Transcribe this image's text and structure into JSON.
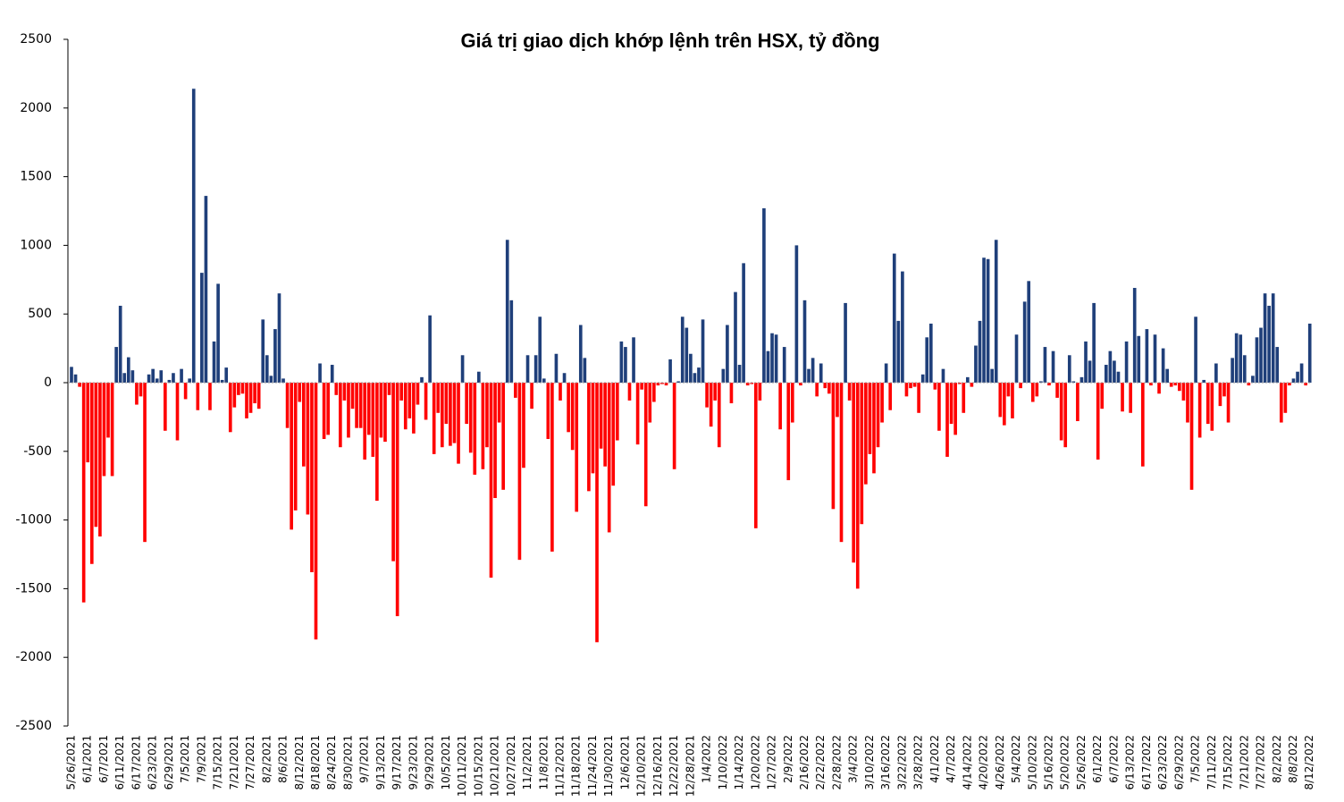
{
  "chart_data": {
    "type": "bar",
    "title": "Giá trị giao dịch khớp lệnh trên HSX, tỷ đồng",
    "ylim": [
      -2500,
      2500
    ],
    "yticks": [
      -2500,
      -2000,
      -1500,
      -1000,
      -500,
      0,
      500,
      1000,
      1500,
      2000,
      2500
    ],
    "positive_color": "#1f3f7a",
    "negative_color": "#ff0000",
    "categories": [
      "5/26/2021",
      null,
      null,
      null,
      "6/1/2021",
      null,
      null,
      null,
      "6/7/2021",
      null,
      null,
      null,
      "6/11/2021",
      null,
      null,
      null,
      "6/17/2021",
      null,
      null,
      null,
      "6/23/2021",
      null,
      null,
      null,
      "6/29/2021",
      null,
      null,
      null,
      "7/5/2021",
      null,
      null,
      null,
      "7/9/2021",
      null,
      null,
      null,
      "7/15/2021",
      null,
      null,
      null,
      "7/21/2021",
      null,
      null,
      null,
      "7/27/2021",
      null,
      null,
      null,
      "8/2/2021",
      null,
      null,
      null,
      "8/6/2021",
      null,
      null,
      null,
      "8/12/2021",
      null,
      null,
      null,
      "8/18/2021",
      null,
      null,
      null,
      "8/24/2021",
      null,
      null,
      null,
      "8/30/2021",
      null,
      null,
      null,
      "9/7/2021",
      null,
      null,
      null,
      "9/13/2021",
      null,
      null,
      null,
      "9/17/2021",
      null,
      null,
      null,
      "9/23/2021",
      null,
      null,
      null,
      "9/29/2021",
      null,
      null,
      null,
      "10/5/2021",
      null,
      null,
      null,
      "10/11/2021",
      null,
      null,
      null,
      "10/15/2021",
      null,
      null,
      null,
      "10/21/2021",
      null,
      null,
      null,
      "10/27/2021",
      null,
      null,
      null,
      "11/2/2021",
      null,
      null,
      null,
      "11/8/2021",
      null,
      null,
      null,
      "11/12/2021",
      null,
      null,
      null,
      "11/18/2021",
      null,
      null,
      null,
      "11/24/2021",
      null,
      null,
      null,
      "11/30/2021",
      null,
      null,
      null,
      "12/6/2021",
      null,
      null,
      null,
      "12/10/2021",
      null,
      null,
      null,
      "12/16/2021",
      null,
      null,
      null,
      "12/22/2021",
      null,
      null,
      null,
      "12/28/2021",
      null,
      null,
      null,
      "1/4/2022",
      null,
      null,
      null,
      "1/10/2022",
      null,
      null,
      null,
      "1/14/2022",
      null,
      null,
      null,
      "1/20/2022",
      null,
      null,
      null,
      "1/27/2022",
      null,
      null,
      null,
      "2/9/2022",
      null,
      null,
      null,
      "2/16/2022",
      null,
      null,
      null,
      "2/22/2022",
      null,
      null,
      null,
      "2/28/2022",
      null,
      null,
      null,
      "3/4/2022",
      null,
      null,
      null,
      "3/10/2022",
      null,
      null,
      null,
      "3/16/2022",
      null,
      null,
      null,
      "3/22/2022",
      null,
      null,
      null,
      "3/28/2022",
      null,
      null,
      null,
      "4/1/2022",
      null,
      null,
      null,
      "4/7/2022",
      null,
      null,
      null,
      "4/14/2022",
      null,
      null,
      null,
      "4/20/2022",
      null,
      null,
      null,
      "4/26/2022",
      null,
      null,
      null,
      "5/4/2022",
      null,
      null,
      null,
      "5/10/2022",
      null,
      null,
      null,
      "5/16/2022",
      null,
      null,
      null,
      "5/20/2022",
      null,
      null,
      null,
      "5/26/2022",
      null,
      null,
      null,
      "6/1/2022",
      null,
      null,
      null,
      "6/7/2022",
      null,
      null,
      null,
      "6/13/2022",
      null,
      null,
      null,
      "6/17/2022",
      null,
      null,
      null,
      "6/23/2022",
      null,
      null,
      null,
      "6/29/2022",
      null,
      null,
      null,
      "7/5/2022",
      null,
      null,
      null,
      "7/11/2022",
      null,
      null,
      null,
      "7/15/2022",
      null,
      null,
      null,
      "7/21/2022",
      null,
      null,
      null,
      "7/27/2022",
      null,
      null,
      null,
      "8/2/2022",
      null,
      null,
      null,
      "8/8/2022",
      null,
      null,
      null,
      "8/12/2022"
    ],
    "values": [
      115,
      60,
      -30,
      -1600,
      -580,
      -1320,
      -1050,
      -1120,
      -680,
      -400,
      -680,
      260,
      560,
      70,
      185,
      90,
      -160,
      -100,
      -1160,
      60,
      100,
      30,
      90,
      -350,
      20,
      70,
      -420,
      100,
      -120,
      30,
      2140,
      -200,
      800,
      1360,
      -200,
      300,
      720,
      20,
      110,
      -360,
      -180,
      -90,
      -80,
      -260,
      -220,
      -150,
      -190,
      460,
      200,
      50,
      390,
      650,
      30,
      -330,
      -1070,
      -930,
      -140,
      -610,
      -960,
      -1380,
      -1870,
      140,
      -410,
      -380,
      130,
      -90,
      -470,
      -130,
      -400,
      -190,
      -330,
      -330,
      -560,
      -380,
      -540,
      -860,
      -400,
      -430,
      -90,
      -1300,
      -1700,
      -130,
      -340,
      -260,
      -370,
      -160,
      40,
      -270,
      490,
      -520,
      -220,
      -470,
      -300,
      -460,
      -440,
      -590,
      200,
      -300,
      -510,
      -670,
      80,
      -630,
      -470,
      -1420,
      -840,
      -290,
      -780,
      1040,
      600,
      -110,
      -1290,
      -620,
      200,
      -190,
      200,
      480,
      30,
      -410,
      -1230,
      210,
      -130,
      70,
      -360,
      -490,
      -940,
      420,
      180,
      -790,
      -660,
      -1890,
      -480,
      -610,
      -1090,
      -750,
      -420,
      300,
      260,
      -130,
      330,
      -450,
      -50,
      -900,
      -290,
      -140,
      -20,
      -10,
      -20,
      170,
      -630,
      10,
      480,
      400,
      210,
      70,
      110,
      460,
      -180,
      -320,
      -130,
      -470,
      100,
      420,
      -150,
      660,
      130,
      870,
      -20,
      -10,
      -1060,
      -130,
      1270,
      230,
      360,
      350,
      -340,
      260,
      -710,
      -290,
      1000,
      -20,
      600,
      100,
      180,
      -100,
      140,
      -40,
      -80,
      -920,
      -250,
      -1160,
      580,
      -130,
      -1310,
      -1500,
      -1030,
      -740,
      -520,
      -660,
      -470,
      -290,
      140,
      -200,
      940,
      450,
      810,
      -100,
      -40,
      -30,
      -220,
      60,
      330,
      430,
      -50,
      -350,
      100,
      -540,
      -300,
      -380,
      -10,
      -220,
      40,
      -30,
      270,
      450,
      910,
      900,
      100,
      1040,
      -250,
      -310,
      -100,
      -260,
      350,
      -40,
      590,
      740,
      -140,
      -100,
      10,
      260,
      -20,
      230,
      -110,
      -420,
      -470,
      200,
      10,
      -280,
      40,
      300,
      160,
      580,
      -560,
      -190,
      130,
      230,
      160,
      80,
      -210,
      300,
      -220,
      690,
      340,
      -610,
      390,
      -20,
      350,
      -80,
      250,
      100,
      -30,
      -20,
      -60,
      -130,
      -290,
      -780,
      480,
      -400,
      20,
      -300,
      -350,
      140,
      -170,
      -100,
      -290,
      180,
      360,
      350,
      200,
      -20,
      50,
      330,
      400,
      650,
      560,
      650,
      260,
      -290,
      -220,
      -20,
      30,
      80,
      140,
      -20,
      430
    ]
  }
}
